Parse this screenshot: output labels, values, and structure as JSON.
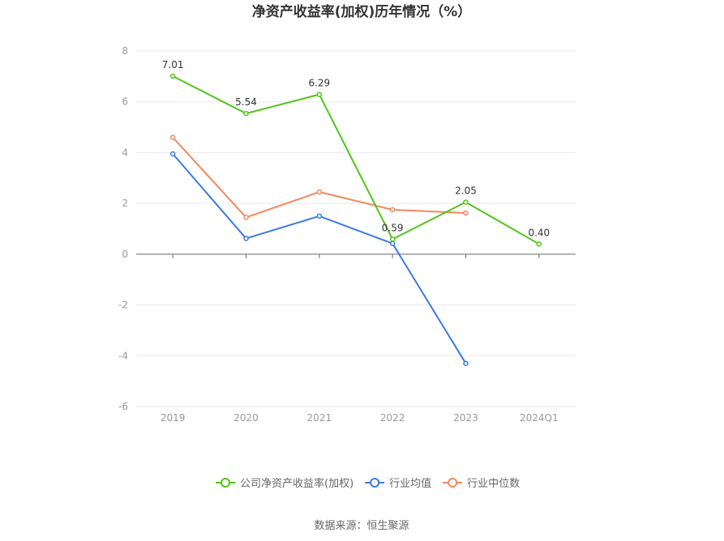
{
  "chart_data": {
    "type": "line",
    "title": "净资产收益率(加权)历年情况（%）",
    "categories": [
      "2019",
      "2020",
      "2021",
      "2022",
      "2023",
      "2024Q1"
    ],
    "ylim": [
      -6,
      8
    ],
    "yticks": [
      8,
      6,
      4,
      2,
      0,
      -2,
      -4,
      -6
    ],
    "grid": true,
    "legend_position": "bottom",
    "series": [
      {
        "name": "公司净资产收益率(加权)",
        "color": "#52c41a",
        "values": [
          7.01,
          5.54,
          6.29,
          0.59,
          2.05,
          0.4
        ],
        "labels": [
          "7.01",
          "5.54",
          "6.29",
          "0.59",
          "2.05",
          "0.40"
        ]
      },
      {
        "name": "行业均值",
        "color": "#3a7ae8",
        "values": [
          3.95,
          0.62,
          1.5,
          0.42,
          -4.3,
          null
        ]
      },
      {
        "name": "行业中位数",
        "color": "#f4875f",
        "values": [
          4.6,
          1.45,
          2.45,
          1.75,
          1.62,
          null
        ]
      }
    ]
  },
  "source_text": "数据来源：恒生聚源"
}
